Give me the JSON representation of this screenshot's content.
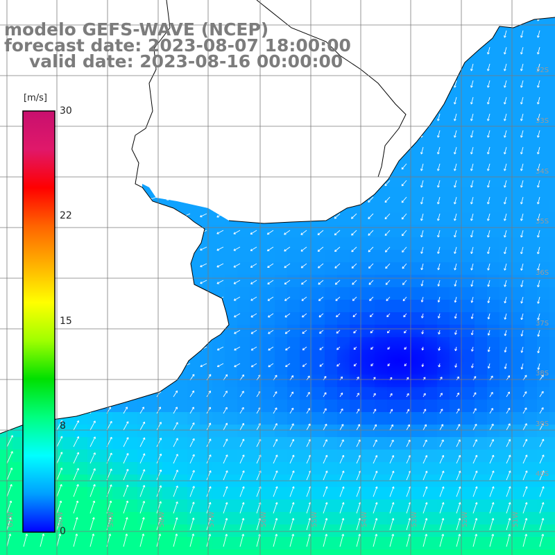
{
  "title": {
    "line1": "modelo GEFS-WAVE (NCEP)",
    "line2": "forecast date: 2023-08-07 18:00:00",
    "line3": "valid date: 2023-08-16 00:00:00"
  },
  "colorbar": {
    "unit": "[m/s]",
    "ticks": [
      "30",
      "22",
      "15",
      "8",
      "0"
    ],
    "colors": [
      "#c8106e",
      "#e0186a",
      "#ff0000",
      "#ff6400",
      "#ffb000",
      "#ffff00",
      "#a0ff00",
      "#00e000",
      "#00ff80",
      "#00ffff",
      "#00a0ff",
      "#0000ff"
    ]
  },
  "lat_labels": [
    "32S",
    "33S",
    "34S",
    "35S",
    "36S",
    "37S",
    "38S",
    "39S",
    "40S"
  ],
  "lon_labels": [
    "61W",
    "60W",
    "59W",
    "58W",
    "57W",
    "56W",
    "55W",
    "54W",
    "53W",
    "52W",
    "51W"
  ],
  "field_colors": {
    "weak": "#0018ff",
    "mid": "#0070ff",
    "sea_light": "#14b4ff",
    "strong": "#00d2ff",
    "south_green": "#00ff90",
    "arrow": "#ffffff",
    "land": "#ffffff",
    "coast": "#000000",
    "grid": "#7a7a7a"
  }
}
